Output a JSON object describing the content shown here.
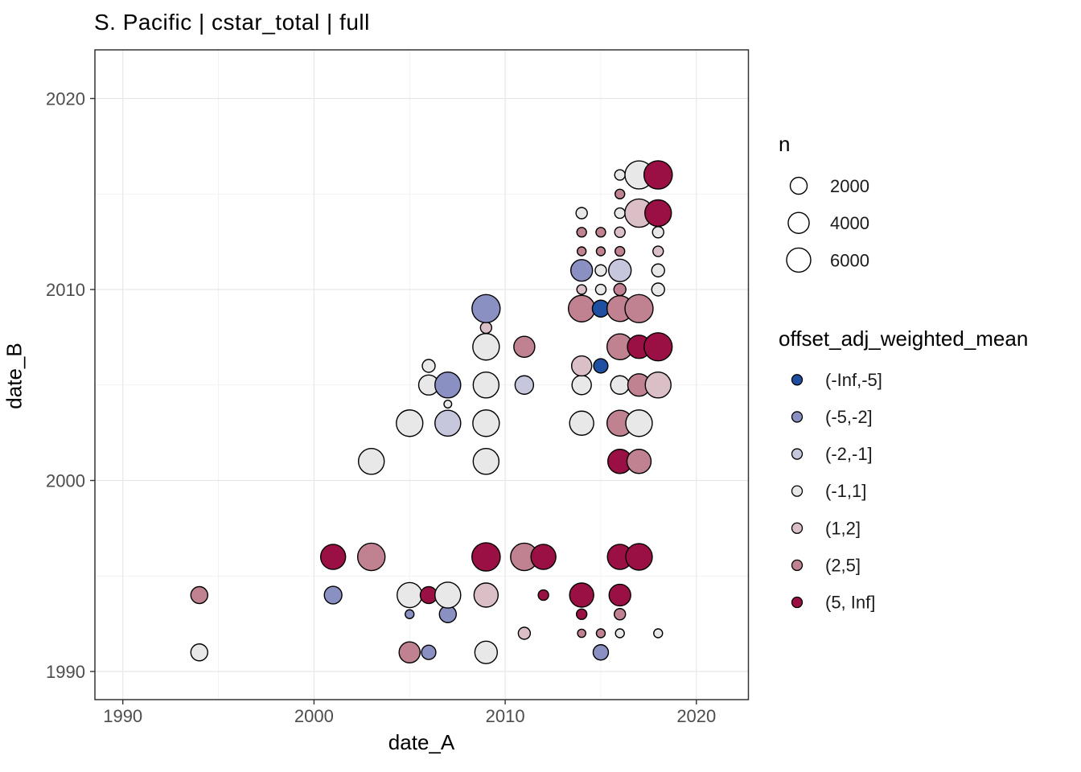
{
  "chart_data": {
    "type": "scatter",
    "title": "S. Pacific | cstar_total | full",
    "xlabel": "date_A",
    "ylabel": "date_B",
    "x_ticks": [
      1990,
      2000,
      2010,
      2020
    ],
    "y_ticks": [
      1990,
      2000,
      2010,
      2020
    ],
    "x_minor_ticks": [
      1995,
      2005,
      2015
    ],
    "y_minor_ticks": [
      1995,
      2005,
      2015
    ],
    "x_range": [
      1988.5,
      2022.8
    ],
    "y_range": [
      1988.5,
      2022.6
    ],
    "grid": true,
    "panel_border_color": "#333333",
    "grid_major_color": "#E7E7E7",
    "grid_minor_color": "#F1F1F1",
    "tick_label_color": "#4D4D4D",
    "point_stroke_color": "#000000",
    "size_legend": {
      "title": "n",
      "values": [
        2000,
        4000,
        6000
      ]
    },
    "color_legend": {
      "title": "offset_adj_weighted_mean",
      "position": "right",
      "bins": [
        {
          "label": "(-Inf,-5]",
          "color": "#1E4FA0"
        },
        {
          "label": "(-5,-2]",
          "color": "#8A90C2"
        },
        {
          "label": "(-2,-1]",
          "color": "#C6C7DC"
        },
        {
          "label": "(-1,1]",
          "color": "#E8E8E8"
        },
        {
          "label": "(1,2]",
          "color": "#DABFC6"
        },
        {
          "label": "(2,5]",
          "color": "#C08290"
        },
        {
          "label": "(5, Inf]",
          "color": "#9B1044"
        }
      ]
    },
    "points_format": [
      "date_A",
      "date_B",
      "n",
      "bin_index"
    ],
    "points": [
      [
        1994,
        1994,
        2000,
        5
      ],
      [
        1994,
        1991,
        2000,
        3
      ],
      [
        2001,
        1996,
        6600,
        6
      ],
      [
        2003,
        1996,
        8500,
        5
      ],
      [
        2009,
        1996,
        9300,
        6
      ],
      [
        2011,
        1996,
        8500,
        5
      ],
      [
        2012,
        1996,
        6600,
        6
      ],
      [
        2016,
        1996,
        6600,
        6
      ],
      [
        2017,
        1996,
        7800,
        6
      ],
      [
        2001,
        1994,
        2300,
        1
      ],
      [
        2005,
        1994,
        6600,
        3
      ],
      [
        2006,
        1994,
        2000,
        6
      ],
      [
        2007,
        1994,
        7200,
        3
      ],
      [
        2009,
        1994,
        6000,
        4
      ],
      [
        2012,
        1994,
        240,
        6
      ],
      [
        2014,
        1994,
        6000,
        6
      ],
      [
        2016,
        1994,
        4400,
        6
      ],
      [
        2005,
        1993,
        70,
        1
      ],
      [
        2007,
        1993,
        2000,
        1
      ],
      [
        2014,
        1993,
        240,
        6
      ],
      [
        2016,
        1993,
        370,
        5
      ],
      [
        2011,
        1992,
        520,
        4
      ],
      [
        2014,
        1992,
        30,
        5
      ],
      [
        2015,
        1992,
        70,
        5
      ],
      [
        2016,
        1992,
        70,
        3
      ],
      [
        2018,
        1992,
        70,
        3
      ],
      [
        2005,
        1991,
        4000,
        5
      ],
      [
        2006,
        1991,
        1100,
        1
      ],
      [
        2009,
        1991,
        4900,
        3
      ],
      [
        2015,
        1991,
        1400,
        1
      ],
      [
        2003,
        2001,
        7200,
        3
      ],
      [
        2009,
        2001,
        7200,
        3
      ],
      [
        2016,
        2001,
        6000,
        6
      ],
      [
        2017,
        2001,
        6000,
        5
      ],
      [
        2005,
        2003,
        7800,
        3
      ],
      [
        2007,
        2003,
        7200,
        2
      ],
      [
        2009,
        2003,
        7800,
        3
      ],
      [
        2014,
        2003,
        6000,
        3
      ],
      [
        2016,
        2003,
        7200,
        5
      ],
      [
        2017,
        2003,
        7800,
        3
      ],
      [
        2007,
        2004,
        10,
        3
      ],
      [
        2006,
        2005,
        3500,
        3
      ],
      [
        2007,
        2005,
        7200,
        1
      ],
      [
        2009,
        2005,
        7200,
        3
      ],
      [
        2011,
        2005,
        2700,
        2
      ],
      [
        2014,
        2005,
        3100,
        3
      ],
      [
        2016,
        2005,
        2700,
        3
      ],
      [
        2017,
        2005,
        4900,
        5
      ],
      [
        2018,
        2005,
        7200,
        4
      ],
      [
        2006,
        2006,
        700,
        3
      ],
      [
        2014,
        2006,
        3500,
        4
      ],
      [
        2015,
        2006,
        1100,
        0
      ],
      [
        2009,
        2007,
        7800,
        3
      ],
      [
        2011,
        2007,
        4000,
        5
      ],
      [
        2016,
        2007,
        7200,
        5
      ],
      [
        2017,
        2007,
        5400,
        6
      ],
      [
        2018,
        2007,
        9100,
        6
      ],
      [
        2009,
        2008,
        370,
        4
      ],
      [
        2009,
        2009,
        9100,
        1
      ],
      [
        2014,
        2009,
        7800,
        5
      ],
      [
        2015,
        2009,
        2000,
        0
      ],
      [
        2016,
        2009,
        7200,
        5
      ],
      [
        2017,
        2009,
        9100,
        5
      ],
      [
        2014,
        2010,
        140,
        4
      ],
      [
        2015,
        2010,
        240,
        3
      ],
      [
        2016,
        2010,
        520,
        5
      ],
      [
        2018,
        2010,
        700,
        3
      ],
      [
        2014,
        2011,
        4400,
        1
      ],
      [
        2015,
        2011,
        370,
        3
      ],
      [
        2016,
        2011,
        4900,
        2
      ],
      [
        2018,
        2011,
        700,
        3
      ],
      [
        2014,
        2012,
        70,
        5
      ],
      [
        2015,
        2012,
        70,
        5
      ],
      [
        2016,
        2012,
        140,
        5
      ],
      [
        2018,
        2012,
        240,
        4
      ],
      [
        2014,
        2013,
        140,
        5
      ],
      [
        2015,
        2013,
        140,
        5
      ],
      [
        2016,
        2013,
        240,
        4
      ],
      [
        2018,
        2013,
        370,
        3
      ],
      [
        2014,
        2014,
        370,
        3
      ],
      [
        2016,
        2014,
        240,
        3
      ],
      [
        2017,
        2014,
        9300,
        4
      ],
      [
        2018,
        2014,
        7800,
        6
      ],
      [
        2016,
        2015,
        140,
        5
      ],
      [
        2016,
        2016,
        240,
        3
      ],
      [
        2017,
        2016,
        9100,
        3
      ],
      [
        2018,
        2016,
        9300,
        6
      ]
    ]
  }
}
